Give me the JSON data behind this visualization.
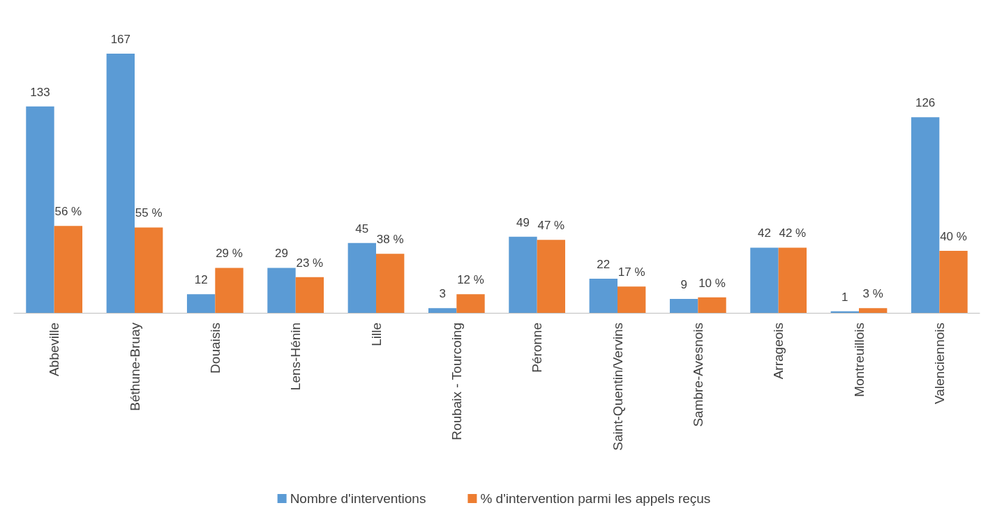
{
  "chart_data": {
    "type": "bar",
    "categories": [
      "Abbeville",
      "Béthune-Bruay",
      "Douaisis",
      "Lens-Hénin",
      "Lille",
      "Roubaix - Tourcoing",
      "Péronne",
      "Saint-Quentin/Vervins",
      "Sambre-Avesnois",
      "Arrageois",
      "Montreuillois",
      "Valenciennois"
    ],
    "series": [
      {
        "name": "Nombre d'interventions",
        "color": "#5b9bd5",
        "values": [
          133,
          167,
          12,
          29,
          45,
          3,
          49,
          22,
          9,
          42,
          1,
          126
        ],
        "value_labels": [
          "133",
          "167",
          "12",
          "29",
          "45",
          "3",
          "49",
          "22",
          "9",
          "42",
          "1",
          "126"
        ]
      },
      {
        "name": "% d'intervention parmi les appels reçus",
        "color": "#ed7d31",
        "values": [
          56,
          55,
          29,
          23,
          38,
          12,
          47,
          17,
          10,
          42,
          3,
          40
        ],
        "value_labels": [
          "56 %",
          "55 %",
          "29 %",
          "23 %",
          "38 %",
          "12 %",
          "47 %",
          "17 %",
          "10 %",
          "42 %",
          "3 %",
          "40 %"
        ]
      }
    ],
    "grid": false,
    "legend": "bottom"
  }
}
